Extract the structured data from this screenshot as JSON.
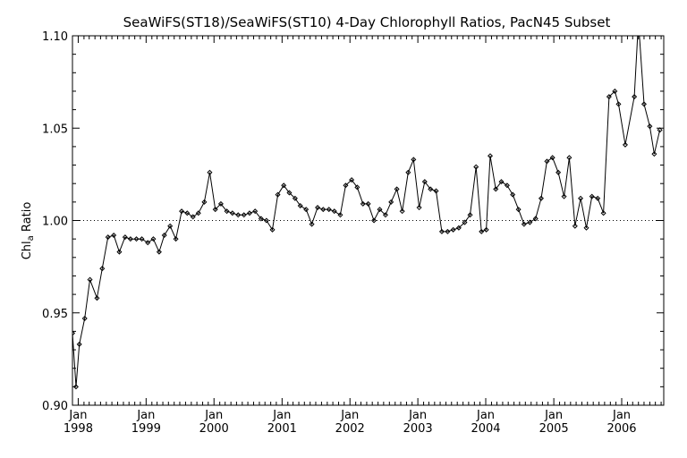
{
  "chart_data": {
    "type": "line",
    "title": "SeaWiFS(ST18)/SeaWiFS(ST10) 4-Day Chlorophyll Ratios, PacN45 Subset",
    "ylabel": "Chl",
    "ylabel_sub": "a",
    "ylabel_tail": " Ratio",
    "xlabel": "",
    "ylim": [
      0.9,
      1.1
    ],
    "xlim": [
      "1997-12-01",
      "2006-08-15"
    ],
    "y_ticks": [
      "0.90",
      "0.95",
      "1.00",
      "1.05",
      "1.10"
    ],
    "x_ticks": [
      {
        "month": "Jan",
        "year": "1998",
        "date": "1998-01-01"
      },
      {
        "month": "Jan",
        "year": "1999",
        "date": "1999-01-01"
      },
      {
        "month": "Jan",
        "year": "2000",
        "date": "2000-01-01"
      },
      {
        "month": "Jan",
        "year": "2001",
        "date": "2001-01-01"
      },
      {
        "month": "Jan",
        "year": "2002",
        "date": "2002-01-01"
      },
      {
        "month": "Jan",
        "year": "2003",
        "date": "2003-01-01"
      },
      {
        "month": "Jan",
        "year": "2004",
        "date": "2004-01-01"
      },
      {
        "month": "Jan",
        "year": "2005",
        "date": "2005-01-01"
      },
      {
        "month": "Jan",
        "year": "2006",
        "date": "2006-01-01"
      }
    ],
    "reference_line": 1.0,
    "grid": false,
    "series": [
      {
        "marker": "diamond",
        "color": "#000000",
        "points": [
          [
            "1997-12-01",
            0.939
          ],
          [
            "1997-12-20",
            0.91
          ],
          [
            "1998-01-07",
            0.933
          ],
          [
            "1998-02-05",
            0.947
          ],
          [
            "1998-03-05",
            0.968
          ],
          [
            "1998-04-12",
            0.958
          ],
          [
            "1998-05-10",
            0.974
          ],
          [
            "1998-06-10",
            0.991
          ],
          [
            "1998-07-11",
            0.992
          ],
          [
            "1998-08-10",
            0.983
          ],
          [
            "1998-09-10",
            0.991
          ],
          [
            "1998-10-09",
            0.99
          ],
          [
            "1998-11-10",
            0.99
          ],
          [
            "1998-12-09",
            0.99
          ],
          [
            "1999-01-10",
            0.988
          ],
          [
            "1999-02-09",
            0.99
          ],
          [
            "1999-03-12",
            0.983
          ],
          [
            "1999-04-09",
            0.992
          ],
          [
            "1999-05-10",
            0.997
          ],
          [
            "1999-06-10",
            0.99
          ],
          [
            "1999-07-11",
            1.005
          ],
          [
            "1999-08-10",
            1.004
          ],
          [
            "1999-09-10",
            1.002
          ],
          [
            "1999-10-09",
            1.004
          ],
          [
            "1999-11-10",
            1.01
          ],
          [
            "1999-12-09",
            1.026
          ],
          [
            "2000-01-08",
            1.006
          ],
          [
            "2000-02-07",
            1.009
          ],
          [
            "2000-03-10",
            1.005
          ],
          [
            "2000-04-09",
            1.004
          ],
          [
            "2000-05-10",
            1.003
          ],
          [
            "2000-06-10",
            1.003
          ],
          [
            "2000-07-10",
            1.004
          ],
          [
            "2000-08-09",
            1.005
          ],
          [
            "2000-09-10",
            1.001
          ],
          [
            "2000-10-09",
            1.0
          ],
          [
            "2000-11-10",
            0.995
          ],
          [
            "2000-12-09",
            1.014
          ],
          [
            "2001-01-10",
            1.019
          ],
          [
            "2001-02-09",
            1.015
          ],
          [
            "2001-03-12",
            1.012
          ],
          [
            "2001-04-09",
            1.008
          ],
          [
            "2001-05-10",
            1.006
          ],
          [
            "2001-06-10",
            0.998
          ],
          [
            "2001-07-11",
            1.007
          ],
          [
            "2001-08-10",
            1.006
          ],
          [
            "2001-09-10",
            1.006
          ],
          [
            "2001-10-09",
            1.005
          ],
          [
            "2001-11-10",
            1.003
          ],
          [
            "2001-12-09",
            1.019
          ],
          [
            "2002-01-10",
            1.022
          ],
          [
            "2002-02-09",
            1.018
          ],
          [
            "2002-03-12",
            1.009
          ],
          [
            "2002-04-09",
            1.009
          ],
          [
            "2002-05-10",
            1.0
          ],
          [
            "2002-06-10",
            1.006
          ],
          [
            "2002-07-11",
            1.003
          ],
          [
            "2002-08-10",
            1.01
          ],
          [
            "2002-09-10",
            1.017
          ],
          [
            "2002-10-09",
            1.005
          ],
          [
            "2002-11-10",
            1.026
          ],
          [
            "2002-12-09",
            1.033
          ],
          [
            "2003-01-08",
            1.007
          ],
          [
            "2003-02-07",
            1.021
          ],
          [
            "2003-03-10",
            1.017
          ],
          [
            "2003-04-09",
            1.016
          ],
          [
            "2003-05-10",
            0.994
          ],
          [
            "2003-06-10",
            0.994
          ],
          [
            "2003-07-10",
            0.995
          ],
          [
            "2003-08-09",
            0.996
          ],
          [
            "2003-09-10",
            0.999
          ],
          [
            "2003-10-09",
            1.003
          ],
          [
            "2003-11-10",
            1.029
          ],
          [
            "2003-12-09",
            0.994
          ],
          [
            "2004-01-04",
            0.995
          ],
          [
            "2004-01-25",
            1.035
          ],
          [
            "2004-02-24",
            1.017
          ],
          [
            "2004-03-25",
            1.021
          ],
          [
            "2004-04-25",
            1.019
          ],
          [
            "2004-05-25",
            1.014
          ],
          [
            "2004-06-25",
            1.006
          ],
          [
            "2004-07-25",
            0.998
          ],
          [
            "2004-08-25",
            0.999
          ],
          [
            "2004-09-25",
            1.001
          ],
          [
            "2004-10-25",
            1.012
          ],
          [
            "2004-11-25",
            1.032
          ],
          [
            "2004-12-25",
            1.034
          ],
          [
            "2005-01-25",
            1.026
          ],
          [
            "2005-02-25",
            1.013
          ],
          [
            "2005-03-25",
            1.034
          ],
          [
            "2005-04-25",
            0.997
          ],
          [
            "2005-05-25",
            1.012
          ],
          [
            "2005-06-25",
            0.996
          ],
          [
            "2005-07-25",
            1.013
          ],
          [
            "2005-08-25",
            1.012
          ],
          [
            "2005-09-25",
            1.004
          ],
          [
            "2005-10-25",
            1.067
          ],
          [
            "2005-11-25",
            1.07
          ],
          [
            "2005-12-15",
            1.063
          ],
          [
            "2006-01-20",
            1.041
          ],
          [
            "2006-03-10",
            1.067
          ],
          [
            "2006-04-01",
            1.108
          ],
          [
            "2006-05-01",
            1.063
          ],
          [
            "2006-06-01",
            1.051
          ],
          [
            "2006-06-25",
            1.036
          ],
          [
            "2006-07-25",
            1.049
          ]
        ]
      }
    ]
  }
}
